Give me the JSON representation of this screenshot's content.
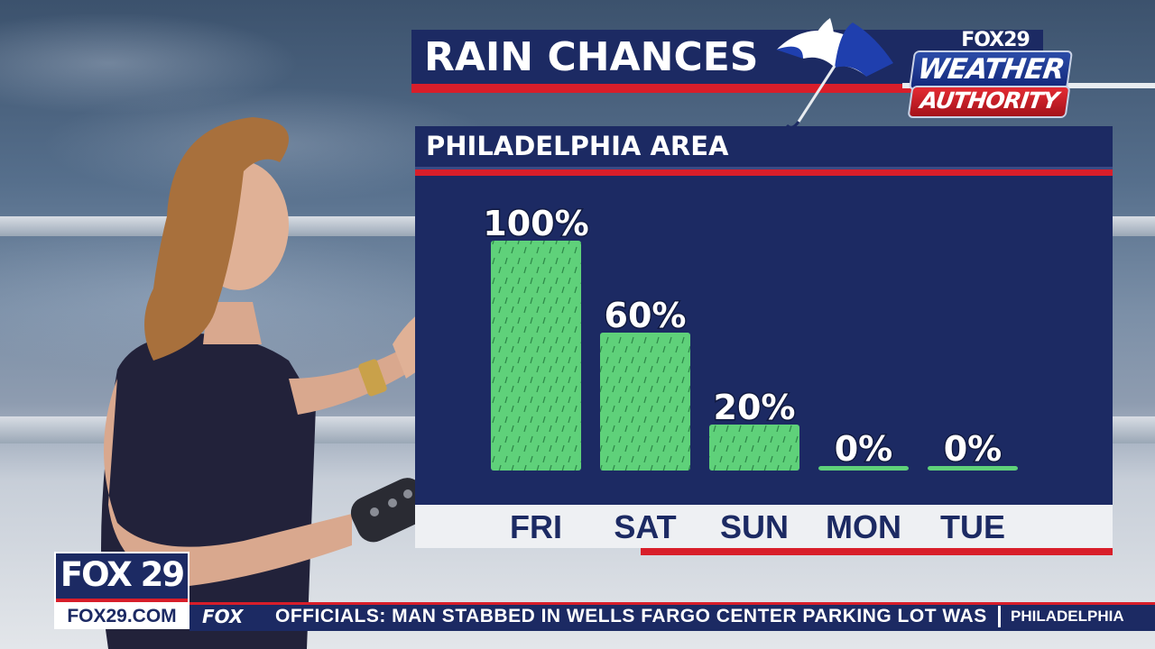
{
  "header": {
    "title": "RAIN CHANCES",
    "logo_top": "FOX29",
    "logo_middle": "WEATHER",
    "logo_bottom": "AUTHORITY"
  },
  "panel": {
    "subtitle": "PHILADELPHIA AREA"
  },
  "chart_data": {
    "type": "bar",
    "title": "RAIN CHANCES",
    "subtitle": "PHILADELPHIA AREA",
    "categories": [
      "FRI",
      "SAT",
      "SUN",
      "MON",
      "TUE"
    ],
    "values": [
      100,
      60,
      20,
      0,
      0
    ],
    "value_labels": [
      "100%",
      "60%",
      "20%",
      "0%",
      "0%"
    ],
    "ylim": [
      0,
      100
    ],
    "unit": "%",
    "bar_color": "#5fd17a",
    "background_color": "#1c2a63",
    "grid": false
  },
  "ticker": {
    "brand": "FOX 29",
    "url": "FOX29.COM",
    "network": "FOX",
    "headline": "OFFICIALS: MAN STABBED IN WELLS FARGO CENTER PARKING LOT WAS",
    "location": "PHILADELPHIA"
  },
  "colors": {
    "navy": "#1c2a63",
    "red": "#d81e2a",
    "green": "#5fd17a"
  }
}
